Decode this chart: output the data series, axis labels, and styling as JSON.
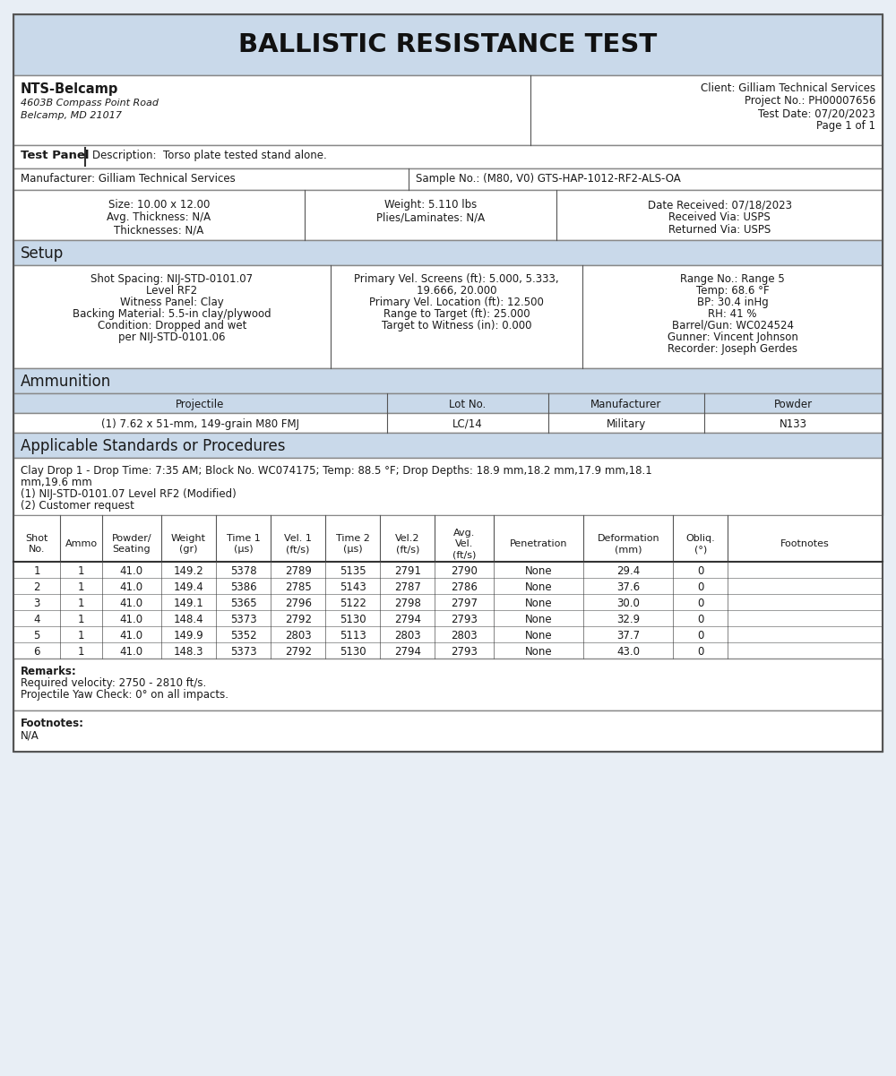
{
  "title": "BALLISTIC RESISTANCE TEST",
  "lab_name": "NTS-Belcamp",
  "lab_address1": "4603B Compass Point Road",
  "lab_address2": "Belcamp, MD 21017",
  "client": "Client: Gilliam Technical Services",
  "project_no": "Project No.: PH00007656",
  "test_date": "Test Date: 07/20/2023",
  "page": "Page 1 of 1",
  "test_panel_label": "Test Panel",
  "description": "Description:  Torso plate tested stand alone.",
  "manufacturer_label": "Manufacturer: Gilliam Technical Services",
  "sample_no_label": "Sample No.: (M80, V0) GTS-HAP-1012-RF2-ALS-OA",
  "size_line": "Size: 10.00 x 12.00",
  "avg_thickness": "Avg. Thickness: N/A",
  "thicknesses": "Thicknesses: N/A",
  "weight": "Weight: 5.110 lbs",
  "plies": "Plies/Laminates: N/A",
  "date_received": "Date Received: 07/18/2023",
  "received_via": "Received Via: USPS",
  "returned_via": "Returned Via: USPS",
  "setup_label": "Setup",
  "applicable_label": "Applicable Standards or Procedures",
  "applicable_text1": "Clay Drop 1 - Drop Time: 7:35 AM; Block No. WC074175; Temp: 88.5 °F; Drop Depths: 18.9 mm,18.2 mm,17.9 mm,18.1",
  "applicable_text2": "mm,19.6 mm",
  "applicable_text3": "(1) NIJ-STD-0101.07 Level RF2 (Modified)",
  "applicable_text4": "(2) Customer request",
  "ammo_label": "Ammunition",
  "projectile_header": "Projectile",
  "lot_no_header": "Lot No.",
  "manufacturer_header": "Manufacturer",
  "powder_header": "Powder",
  "projectile_value": "(1) 7.62 x 51-mm, 149-grain M80 FMJ",
  "lot_no_value": "LC/14",
  "manufacturer_value": "Military",
  "powder_value": "N133",
  "table_headers": [
    "Shot\nNo.",
    "Ammo",
    "Powder/\nSeating",
    "Weight\n(gr)",
    "Time 1\n(μs)",
    "Vel. 1\n(ft/s)",
    "Time 2\n(μs)",
    "Vel.2\n(ft/s)",
    "Avg.\nVel.\n(ft/s)",
    "Penetration",
    "Deformation\n(mm)",
    "Obliq.\n(°)",
    "Footnotes"
  ],
  "table_data": [
    [
      "1",
      "1",
      "41.0",
      "149.2",
      "5378",
      "2789",
      "5135",
      "2791",
      "2790",
      "None",
      "29.4",
      "0",
      ""
    ],
    [
      "2",
      "1",
      "41.0",
      "149.4",
      "5386",
      "2785",
      "5143",
      "2787",
      "2786",
      "None",
      "37.6",
      "0",
      ""
    ],
    [
      "3",
      "1",
      "41.0",
      "149.1",
      "5365",
      "2796",
      "5122",
      "2798",
      "2797",
      "None",
      "30.0",
      "0",
      ""
    ],
    [
      "4",
      "1",
      "41.0",
      "148.4",
      "5373",
      "2792",
      "5130",
      "2794",
      "2793",
      "None",
      "32.9",
      "0",
      ""
    ],
    [
      "5",
      "1",
      "41.0",
      "149.9",
      "5352",
      "2803",
      "5113",
      "2803",
      "2803",
      "None",
      "37.7",
      "0",
      ""
    ],
    [
      "6",
      "1",
      "41.0",
      "148.3",
      "5373",
      "2792",
      "5130",
      "2794",
      "2793",
      "None",
      "43.0",
      "0",
      ""
    ]
  ],
  "remarks_label": "Remarks:",
  "remarks1": "Required velocity: 2750 - 2810 ft/s.",
  "remarks2": "Projectile Yaw Check: 0° on all impacts.",
  "footnotes_label": "Footnotes:",
  "footnotes_value": "N/A",
  "header_bg": "#c9d9ea",
  "section_bg": "#c9d9ea",
  "white_bg": "#ffffff",
  "outer_bg": "#e8eef5"
}
